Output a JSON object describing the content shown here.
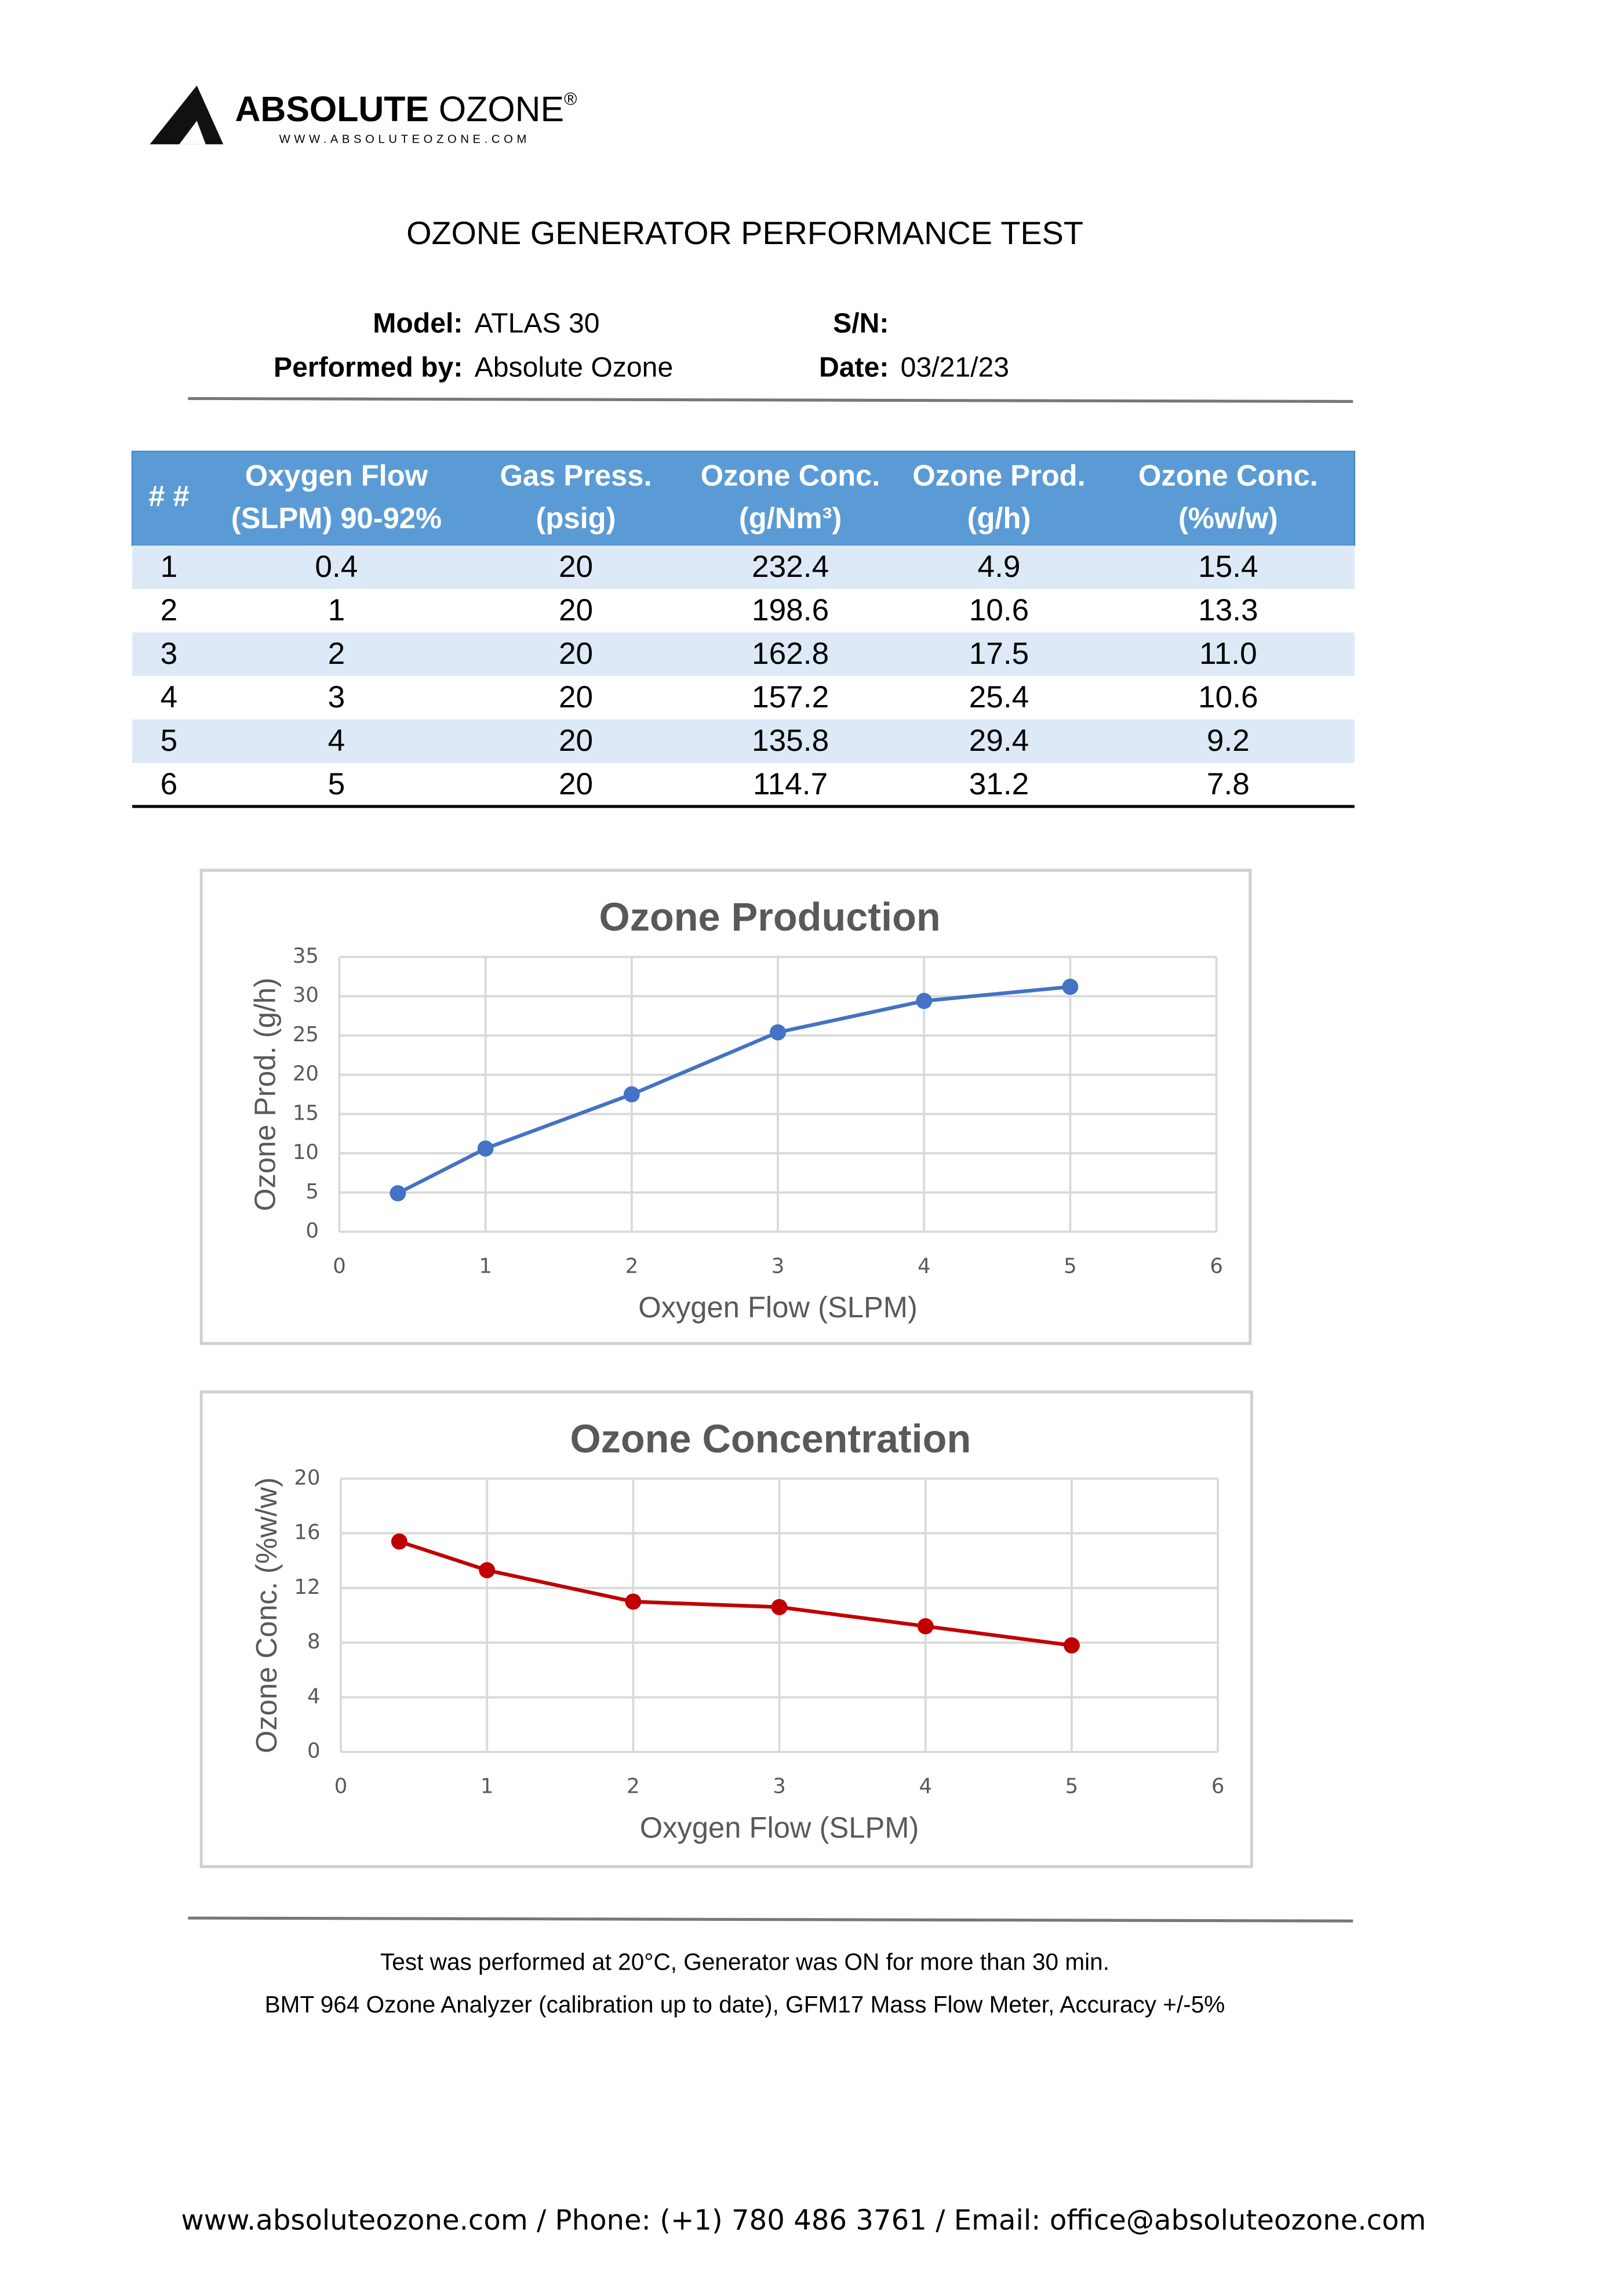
{
  "header": {
    "brand_bold": "ABSOLUTE",
    "brand_light": "OZONE",
    "brand_mark": "®",
    "website": "WWW.ABSOLUTEOZONE.COM"
  },
  "title": "OZONE GENERATOR PERFORMANCE TEST",
  "info": [
    {
      "label": "Model:",
      "value": "ATLAS 30"
    },
    {
      "label": "S/N:"
    },
    {
      "label": "Performed by:",
      "value": "Absolute Ozone"
    },
    {
      "label": "Date:",
      "value": "03/21/23"
    }
  ],
  "table": {
    "headers": [
      [
        "# #"
      ],
      [
        "Oxygen Flow",
        "(SLPM) 90-92%"
      ],
      [
        "Gas Press.",
        "(psig)"
      ],
      [
        "Ozone Conc.",
        "(g/Nm³)"
      ],
      [
        "Ozone Prod.",
        "(g/h)"
      ],
      [
        "Ozone Conc.",
        "(%w/w)"
      ]
    ],
    "rows": [
      [
        "1",
        "0.4",
        "20",
        "232.4",
        "4.9",
        "15.4"
      ],
      [
        "2",
        "1",
        "20",
        "198.6",
        "10.6",
        "13.3"
      ],
      [
        "3",
        "2",
        "20",
        "162.8",
        "17.5",
        "11.0"
      ],
      [
        "4",
        "3",
        "20",
        "157.2",
        "25.4",
        "10.6"
      ],
      [
        "5",
        "4",
        "20",
        "135.8",
        "29.4",
        "9.2"
      ],
      [
        "6",
        "5",
        "20",
        "114.7",
        "31.2",
        "7.8"
      ]
    ]
  },
  "chart_data": [
    {
      "type": "line",
      "title": "Ozone Production",
      "x_label": "Oxygen Flow (SLPM)",
      "y_label": "Ozone Prod. (g/h)",
      "x": [
        0.4,
        1,
        2,
        3,
        4,
        5
      ],
      "values": [
        4.9,
        10.6,
        17.5,
        25.4,
        29.4,
        31.2
      ],
      "color": "#4472c4",
      "xlim": [
        0,
        6
      ],
      "xticks": [
        0,
        1,
        2,
        3,
        4,
        5,
        6
      ],
      "ylim": [
        0,
        35
      ],
      "yticks": [
        0,
        5,
        10,
        15,
        20,
        25,
        30,
        35
      ],
      "grid": true
    },
    {
      "type": "line",
      "title": "Ozone Concentration",
      "x_label": "Oxygen Flow (SLPM)",
      "y_label": "Ozone Conc. (%w/w)",
      "x": [
        0.4,
        1,
        2,
        3,
        4,
        5
      ],
      "values": [
        15.4,
        13.3,
        11.0,
        10.6,
        9.2,
        7.8
      ],
      "color": "#c00000",
      "xlim": [
        0,
        6
      ],
      "xticks": [
        0,
        1,
        2,
        3,
        4,
        5,
        6
      ],
      "ylim": [
        0,
        20
      ],
      "yticks": [
        0,
        4,
        8,
        12,
        16,
        20
      ],
      "grid": true
    }
  ],
  "notes": [
    "Test was performed at 20°C, Generator was ON for more than 30 min.",
    "BMT 964 Ozone Analyzer (calibration up to date), GFM17 Mass Flow Meter, Accuracy +/-5%"
  ],
  "contact": "www.absoluteozone.com / Phone: (+1) 780 486 3761 / Email: office@absoluteozone.com"
}
